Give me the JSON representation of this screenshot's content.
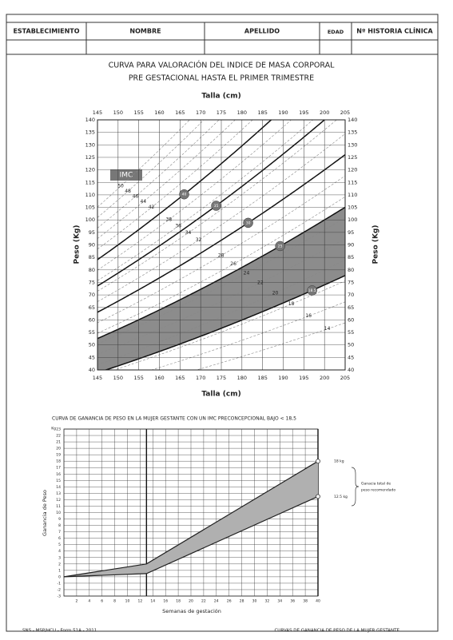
{
  "form": {
    "columns": [
      "ESTABLECIMIENTO",
      "NOMBRE",
      "APELLIDO",
      "EDAD",
      "Nº HISTORIA CLÍNICA"
    ]
  },
  "chart_data": [
    {
      "type": "bmi_curves",
      "title": [
        "CURVA PARA VALORACIÓN DEL INDICE DE MASA CORPORAL",
        "PRE GESTACIONAL HASTA EL PRIMER TRIMESTRE"
      ],
      "xlabel": "Talla (cm)",
      "ylabel": "Peso (Kg)",
      "xlim": [
        145,
        205
      ],
      "xticks": [
        145,
        150,
        155,
        160,
        165,
        170,
        175,
        180,
        185,
        190,
        195,
        200,
        205
      ],
      "ylim": [
        40,
        140
      ],
      "yticks": [
        40,
        45,
        50,
        55,
        60,
        65,
        70,
        75,
        80,
        85,
        90,
        95,
        100,
        105,
        110,
        115,
        120,
        125,
        130,
        135,
        140
      ],
      "imc_label": "IMC",
      "curves": [
        40,
        35,
        30,
        25,
        18.5
      ],
      "dashed_curves": [
        50,
        48,
        46,
        44,
        42,
        38,
        36,
        34,
        32,
        28,
        26,
        24,
        22,
        20,
        18,
        16,
        14
      ],
      "band_color": "#8c8c8c"
    },
    {
      "type": "line",
      "title": "CURVA DE GANANCIA DE PESO EN LA MUJER GESTANTE CON UN IMC PRECONCEPCIONAL BAJO < 18,5",
      "xlabel": "Semanas de gestación",
      "ylabel": "Ganancia de Peso",
      "yunit": "Kg",
      "x": [
        0,
        13,
        40
      ],
      "series": [
        {
          "name": "18 kg",
          "color": "#222222",
          "values": [
            0,
            2,
            18
          ]
        },
        {
          "name": "12.5 kg",
          "color": "#222222",
          "values": [
            0,
            0.5,
            12.5
          ]
        }
      ],
      "annotation": [
        "Ganacia total de",
        "peso recomendado"
      ],
      "xlim": [
        0,
        40
      ],
      "xticks": [
        2,
        4,
        6,
        8,
        10,
        12,
        14,
        16,
        18,
        20,
        22,
        24,
        26,
        28,
        30,
        32,
        34,
        36,
        38,
        40
      ],
      "ylim": [
        -3,
        23
      ],
      "yticks": [
        -3,
        -2,
        -1,
        0,
        1,
        2,
        3,
        4,
        5,
        6,
        7,
        8,
        9,
        10,
        11,
        12,
        13,
        14,
        15,
        16,
        17,
        18,
        19,
        20,
        21,
        22,
        23
      ],
      "band_color": "#b0b0b0"
    }
  ],
  "footer": {
    "left": "SNS - MSP/HCU - Form 51A - 2011",
    "right": "CURVAS DE GANANCIA DE PESO DE LA MUJER GESTANTE"
  }
}
